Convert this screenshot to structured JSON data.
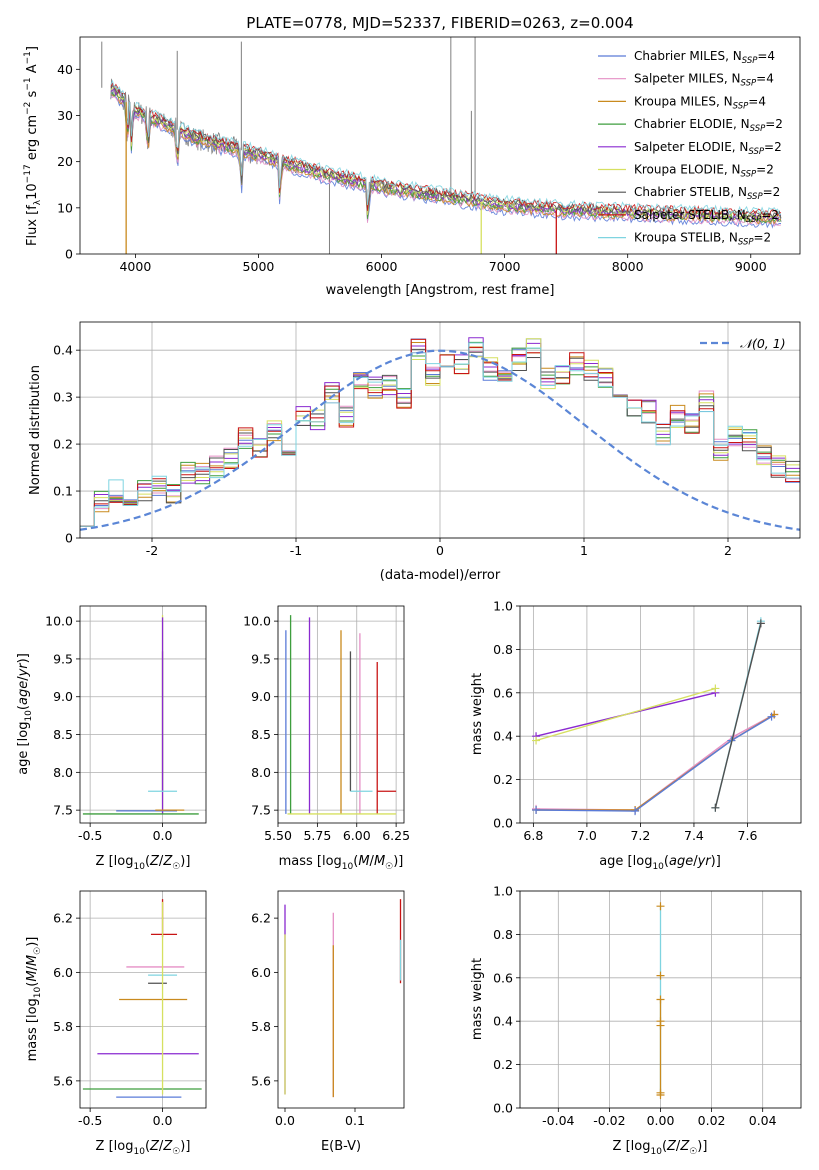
{
  "colors": {
    "Chabrier MILES": "#5a7bd8",
    "Salpeter MILES": "#e58fc5",
    "Kroupa MILES": "#c98a1e",
    "Chabrier ELODIE": "#3e9e3e",
    "Salpeter ELODIE": "#8a2ad0",
    "Kroupa ELODIE": "#d6e060",
    "Chabrier STELIB": "#505050",
    "Salpeter STELIB": "#c81414",
    "Kroupa STELIB": "#7fd4e0",
    "data": "#808080",
    "gaussian": "#5b86d6"
  },
  "chart_data": [
    {
      "id": "spectrum",
      "type": "line",
      "title": "PLATE=0778, MJD=52337, FIBERID=0263, z=0.004",
      "xlabel": "wavelength [Angstrom, rest frame]",
      "ylabel_parts": [
        "Flux [f",
        "λ",
        "10",
        "−17",
        " erg cm",
        "−2",
        " s",
        "−1",
        " A",
        "−1",
        "]"
      ],
      "xlim": [
        3550,
        9400
      ],
      "ylim": [
        0,
        47
      ],
      "xticks": [
        4000,
        5000,
        6000,
        7000,
        8000,
        9000
      ],
      "yticks": [
        0,
        10,
        20,
        30,
        40
      ],
      "legend_position": "upper right",
      "legend": [
        {
          "label": "Chabrier MILES, N",
          "sub": "SSP",
          "tail": "=4"
        },
        {
          "label": "Salpeter MILES, N",
          "sub": "SSP",
          "tail": "=4"
        },
        {
          "label": "Kroupa MILES, N",
          "sub": "SSP",
          "tail": "=4"
        },
        {
          "label": "Chabrier ELODIE, N",
          "sub": "SSP",
          "tail": "=2"
        },
        {
          "label": "Salpeter ELODIE, N",
          "sub": "SSP",
          "tail": "=2"
        },
        {
          "label": "Kroupa ELODIE, N",
          "sub": "SSP",
          "tail": "=2"
        },
        {
          "label": "Chabrier STELIB, N",
          "sub": "SSP",
          "tail": "=2"
        },
        {
          "label": "Salpeter STELIB, N",
          "sub": "SSP",
          "tail": "=2"
        },
        {
          "label": "Kroupa STELIB, N",
          "sub": "SSP",
          "tail": "=2"
        }
      ],
      "continuum": {
        "x": [
          3800,
          4000,
          4500,
          5000,
          5500,
          6000,
          6500,
          7000,
          7500,
          8000,
          8500,
          9000,
          9250
        ],
        "y": [
          36,
          31,
          25,
          21.5,
          17.5,
          14.5,
          12.5,
          10.5,
          9.5,
          9,
          8.5,
          8,
          7.8
        ]
      },
      "emission_lines": [
        {
          "x": 3727,
          "y": 46
        },
        {
          "x": 4340,
          "y": 44
        },
        {
          "x": 4861,
          "y": 46
        },
        {
          "x": 5577,
          "y": 0
        },
        {
          "x": 6300,
          "y": 12
        },
        {
          "x": 6563,
          "y": 47
        },
        {
          "x": 6730,
          "y": 31
        },
        {
          "x": 6760,
          "y": 47
        }
      ],
      "model_drops": [
        {
          "x": 3925,
          "series": "Kroupa MILES"
        },
        {
          "x": 6810,
          "series": "Kroupa ELODIE"
        },
        {
          "x": 7420,
          "series": "Salpeter STELIB"
        }
      ]
    },
    {
      "id": "residual-histogram",
      "type": "line",
      "xlabel": "(data-model)/error",
      "ylabel": "Normed distribution",
      "xlim": [
        -2.5,
        2.5
      ],
      "ylim": [
        0,
        0.46
      ],
      "xticks": [
        -2,
        -1,
        0,
        1,
        2
      ],
      "yticks": [
        0,
        0.1,
        0.2,
        0.3,
        0.4
      ],
      "grid": true,
      "legend_position": "upper right",
      "legend": [
        "𝒩(0, 1)"
      ],
      "bin_width": 0.1,
      "histogram": [
        0.05,
        0.08,
        0.1,
        0.09,
        0.1,
        0.11,
        0.09,
        0.14,
        0.14,
        0.15,
        0.17,
        0.21,
        0.19,
        0.23,
        0.19,
        0.26,
        0.25,
        0.31,
        0.26,
        0.34,
        0.32,
        0.33,
        0.3,
        0.4,
        0.35,
        0.38,
        0.37,
        0.41,
        0.36,
        0.34,
        0.38,
        0.4,
        0.34,
        0.35,
        0.37,
        0.36,
        0.34,
        0.31,
        0.28,
        0.27,
        0.22,
        0.26,
        0.24,
        0.29,
        0.19,
        0.22,
        0.21,
        0.18,
        0.15,
        0.14,
        0.12,
        0.1,
        0.09,
        0.08,
        0.07,
        0.07,
        0.06,
        0.06,
        0.05,
        0.05,
        0.04,
        0.04,
        0.05,
        0.05,
        0.03,
        0.03,
        0.03,
        0.03,
        0.02,
        0.02
      ]
    },
    {
      "id": "age-vs-Z",
      "type": "scatter",
      "xlabel": "Z [log10(Z/Z☉)]",
      "ylabel": "age  [log10(age/yr)]",
      "xlim": [
        -0.57,
        0.3
      ],
      "ylim": [
        7.33,
        10.2
      ],
      "xticks": [
        -0.5,
        0.0
      ],
      "yticks": [
        7.5,
        8.0,
        8.5,
        9.0,
        9.5,
        10.0
      ],
      "grid": true,
      "segments": [
        {
          "series": "Chabrier STELIB",
          "x1": 0,
          "y1": 7.75,
          "x2": 0,
          "y2": 9.6
        },
        {
          "series": "Kroupa ELODIE",
          "x1": 0,
          "y1": 7.45,
          "x2": 0,
          "y2": 10.08
        },
        {
          "series": "Salpeter ELODIE",
          "x1": 0,
          "y1": 7.45,
          "x2": 0,
          "y2": 10.05
        },
        {
          "series": "Chabrier MILES",
          "x1": -0.32,
          "y1": 7.49,
          "x2": 0.1,
          "y2": 7.49
        },
        {
          "series": "Kroupa MILES",
          "x1": -0.05,
          "y1": 7.5,
          "x2": 0.15,
          "y2": 7.5
        },
        {
          "series": "Kroupa STELIB",
          "x1": -0.1,
          "y1": 7.75,
          "x2": 0.1,
          "y2": 7.75
        },
        {
          "series": "Chabrier ELODIE",
          "x1": -0.55,
          "y1": 7.45,
          "x2": 0.25,
          "y2": 7.45
        }
      ]
    },
    {
      "id": "age-vs-mass",
      "type": "scatter",
      "xlabel": "mass [log10(M/M☉)]",
      "ylabel": "",
      "xlim": [
        5.5,
        6.3
      ],
      "ylim": [
        7.33,
        10.2
      ],
      "xticks": [
        5.5,
        5.75,
        6.0,
        6.25
      ],
      "yticks": [
        7.5,
        8.0,
        8.5,
        9.0,
        9.5,
        10.0
      ],
      "grid": true,
      "segments": [
        {
          "series": "Chabrier ELODIE",
          "x1": 5.58,
          "y1": 7.45,
          "x2": 5.58,
          "y2": 10.08
        },
        {
          "series": "Chabrier MILES",
          "x1": 5.55,
          "y1": 7.45,
          "x2": 5.55,
          "y2": 9.88
        },
        {
          "series": "Salpeter ELODIE",
          "x1": 5.7,
          "y1": 7.45,
          "x2": 5.7,
          "y2": 10.05
        },
        {
          "series": "Kroupa MILES",
          "x1": 5.9,
          "y1": 7.45,
          "x2": 5.9,
          "y2": 9.88
        },
        {
          "series": "Chabrier STELIB",
          "x1": 5.96,
          "y1": 7.75,
          "x2": 5.96,
          "y2": 9.6
        },
        {
          "series": "Salpeter MILES",
          "x1": 6.02,
          "y1": 7.45,
          "x2": 6.02,
          "y2": 9.84
        },
        {
          "series": "Salpeter STELIB",
          "x1": 6.13,
          "y1": 7.45,
          "x2": 6.13,
          "y2": 9.46
        },
        {
          "series": "Salpeter STELIB",
          "x1": 6.13,
          "y1": 7.75,
          "x2": 6.25,
          "y2": 7.75
        },
        {
          "series": "Kroupa STELIB",
          "x1": 5.96,
          "y1": 7.75,
          "x2": 6.1,
          "y2": 7.75
        },
        {
          "series": "Kroupa ELODIE",
          "x1": 5.56,
          "y1": 7.45,
          "x2": 6.25,
          "y2": 7.45
        }
      ]
    },
    {
      "id": "mass-weight-vs-age",
      "type": "line",
      "xlabel": "age  [log10(age/yr)]",
      "ylabel": "mass weight",
      "xlim": [
        6.75,
        7.8
      ],
      "ylim": [
        0,
        1.0
      ],
      "xticks": [
        6.8,
        7.0,
        7.2,
        7.4,
        7.6
      ],
      "yticks": [
        0.0,
        0.2,
        0.4,
        0.6,
        0.8,
        1.0
      ],
      "grid": true,
      "series": [
        {
          "name": "Salpeter ELODIE",
          "x": [
            6.81,
            7.48
          ],
          "y": [
            0.4,
            0.6
          ]
        },
        {
          "name": "Kroupa ELODIE",
          "x": [
            6.81,
            7.48
          ],
          "y": [
            0.38,
            0.62
          ]
        },
        {
          "name": "Salpeter MILES",
          "x": [
            6.81,
            7.18,
            7.55,
            7.7
          ],
          "y": [
            0.065,
            0.06,
            0.4,
            0.5
          ]
        },
        {
          "name": "Kroupa MILES",
          "x": [
            6.81,
            7.18,
            7.54,
            7.7
          ],
          "y": [
            0.06,
            0.06,
            0.38,
            0.5
          ]
        },
        {
          "name": "Chabrier MILES",
          "x": [
            6.81,
            7.18,
            7.54,
            7.69
          ],
          "y": [
            0.06,
            0.055,
            0.38,
            0.49
          ]
        },
        {
          "name": "Kroupa STELIB",
          "x": [
            7.48,
            7.65
          ],
          "y": [
            0.07,
            0.93
          ]
        },
        {
          "name": "Chabrier STELIB",
          "x": [
            7.48,
            7.65
          ],
          "y": [
            0.07,
            0.92
          ]
        }
      ]
    },
    {
      "id": "mass-vs-Z",
      "type": "scatter",
      "xlabel": "Z [log10(Z/Z☉)]",
      "ylabel": "mass [log10(M/M☉)]",
      "xlim": [
        -0.57,
        0.3
      ],
      "ylim": [
        5.5,
        6.3
      ],
      "xticks": [
        -0.5,
        0.0
      ],
      "yticks": [
        5.6,
        5.8,
        6.0,
        6.2
      ],
      "grid": true,
      "segments": [
        {
          "series": "Salpeter STELIB",
          "x1": 0,
          "y1": 6.13,
          "x2": 0,
          "y2": 6.27
        },
        {
          "series": "Salpeter STELIB",
          "x1": -0.08,
          "y1": 6.14,
          "x2": 0.1,
          "y2": 6.14
        },
        {
          "series": "Salpeter MILES",
          "x1": -0.25,
          "y1": 6.02,
          "x2": 0.15,
          "y2": 6.02
        },
        {
          "series": "Kroupa STELIB",
          "x1": -0.1,
          "y1": 5.99,
          "x2": 0.1,
          "y2": 5.99
        },
        {
          "series": "Chabrier STELIB",
          "x1": -0.1,
          "y1": 5.96,
          "x2": 0.03,
          "y2": 5.96
        },
        {
          "series": "Kroupa MILES",
          "x1": -0.3,
          "y1": 5.9,
          "x2": 0.17,
          "y2": 5.9
        },
        {
          "series": "Salpeter ELODIE",
          "x1": -0.45,
          "y1": 5.7,
          "x2": 0.25,
          "y2": 5.7
        },
        {
          "series": "Chabrier ELODIE",
          "x1": -0.55,
          "y1": 5.57,
          "x2": 0.27,
          "y2": 5.57
        },
        {
          "series": "Chabrier MILES",
          "x1": -0.32,
          "y1": 5.54,
          "x2": 0.13,
          "y2": 5.54
        },
        {
          "series": "Kroupa ELODIE",
          "x1": 0,
          "y1": 5.55,
          "x2": 0,
          "y2": 6.26
        }
      ]
    },
    {
      "id": "mass-vs-EBV",
      "type": "scatter",
      "xlabel": "E(B-V)",
      "ylabel": "",
      "xlim": [
        -0.01,
        0.17
      ],
      "ylim": [
        5.5,
        6.3
      ],
      "xticks": [
        0.0,
        0.1
      ],
      "yticks": [
        5.6,
        5.8,
        6.0,
        6.2
      ],
      "grid": false,
      "segments": [
        {
          "series": "Salpeter ELODIE",
          "x1": 0.0,
          "y1": 5.55,
          "x2": 0.0,
          "y2": 6.25
        },
        {
          "series": "Kroupa ELODIE",
          "x1": 0.0,
          "y1": 5.55,
          "x2": 0.0,
          "y2": 6.14
        },
        {
          "series": "Salpeter MILES",
          "x1": 0.069,
          "y1": 5.54,
          "x2": 0.069,
          "y2": 6.22
        },
        {
          "series": "Kroupa MILES",
          "x1": 0.069,
          "y1": 5.54,
          "x2": 0.069,
          "y2": 6.1
        },
        {
          "series": "Salpeter STELIB",
          "x1": 0.165,
          "y1": 5.96,
          "x2": 0.165,
          "y2": 6.27
        },
        {
          "series": "Kroupa STELIB",
          "x1": 0.165,
          "y1": 5.97,
          "x2": 0.165,
          "y2": 6.12
        }
      ]
    },
    {
      "id": "mass-weight-vs-Z",
      "type": "scatter",
      "xlabel": "Z [log10(Z/Z☉)]",
      "ylabel": "mass weight",
      "xlim": [
        -0.055,
        0.055
      ],
      "ylim": [
        0,
        1.0
      ],
      "xticks": [
        -0.04,
        -0.02,
        0.0,
        0.02,
        0.04
      ],
      "yticks": [
        0.0,
        0.2,
        0.4,
        0.6,
        0.8,
        1.0
      ],
      "grid": true,
      "segments": [
        {
          "series": "Kroupa STELIB",
          "x1": 0,
          "y1": 0.06,
          "x2": 0,
          "y2": 0.93
        },
        {
          "series": "Kroupa MILES",
          "x1": 0,
          "y1": 0.06,
          "x2": 0,
          "y2": 0.5
        }
      ],
      "markers": [
        0.93,
        0.61,
        0.5,
        0.4,
        0.38,
        0.07,
        0.06
      ]
    }
  ]
}
